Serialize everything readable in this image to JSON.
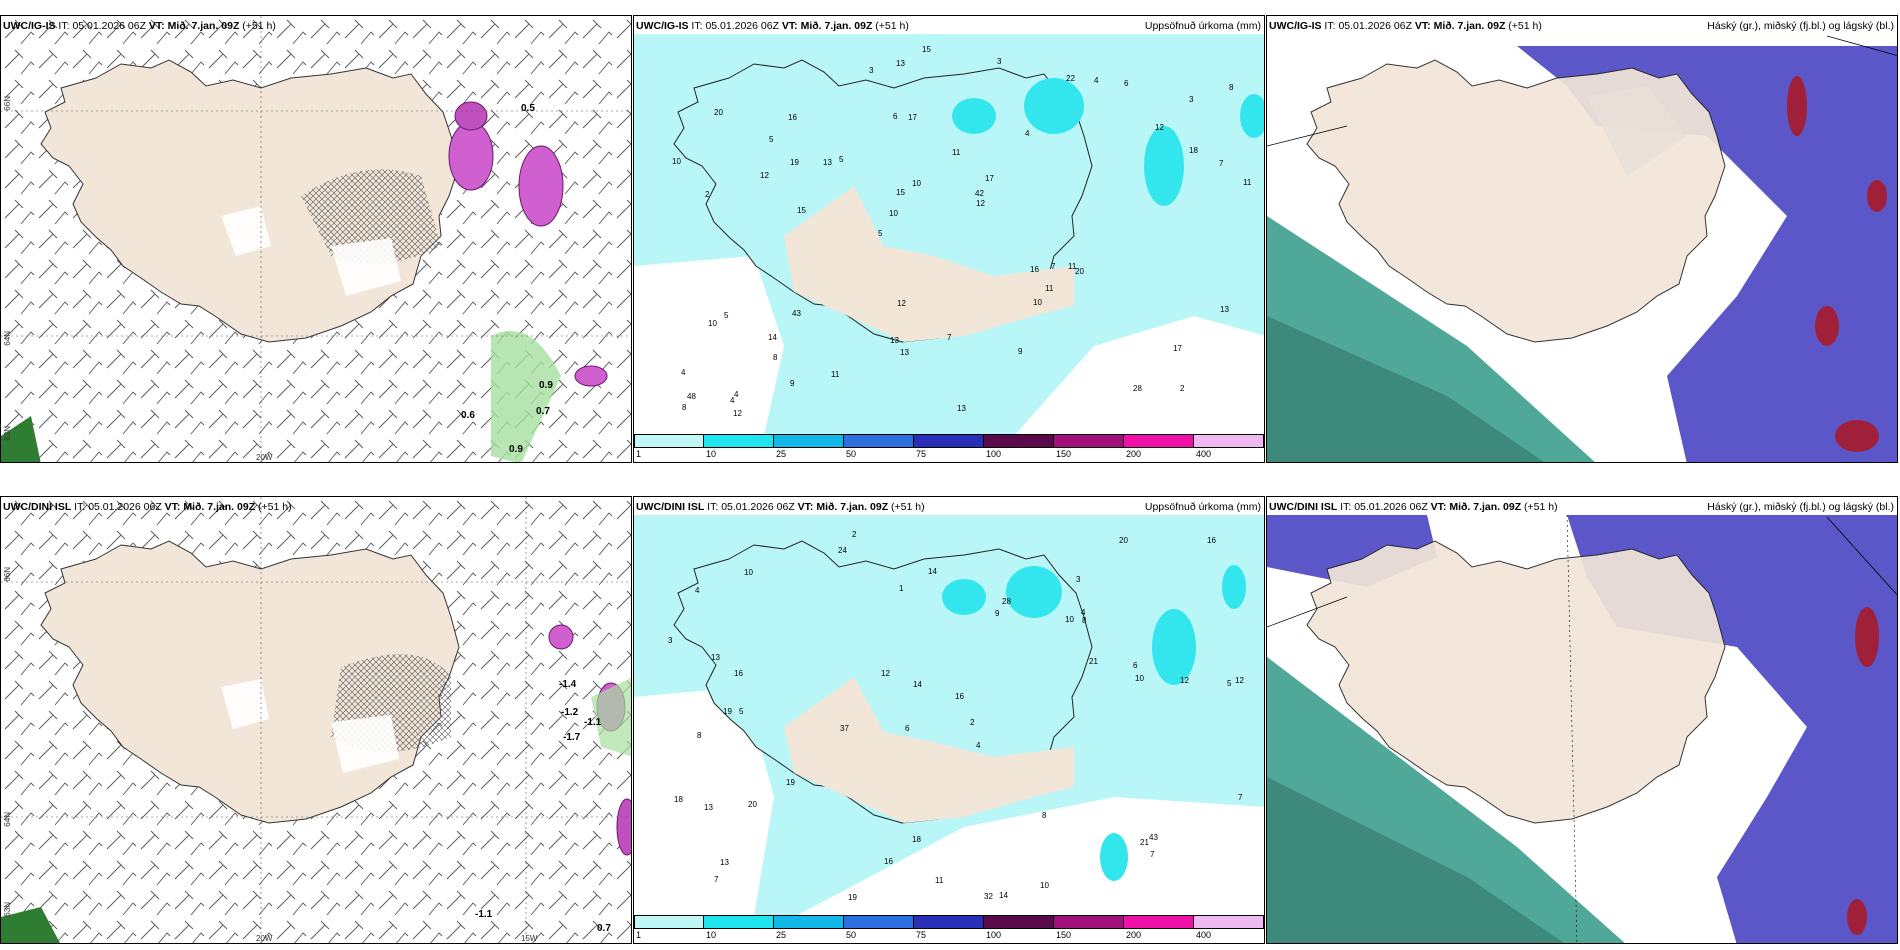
{
  "colors": {
    "land": "#f2e6d8",
    "precip_light": "#b9f6f8",
    "precip_mid": "#33e6ee",
    "cloud_high": "#5b57c8",
    "cloud_mid": "#6fa3e8",
    "cloud_low": "#4fa898",
    "cloud_red": "#a0203a",
    "wind_green": "#4caf50",
    "wind_magenta": "#c040c0"
  },
  "panels": [
    {
      "id": "wind-top",
      "model": "UWC/IG-IS",
      "it_label": "IT:",
      "it": "05.01.2026 06Z",
      "vt_label": "VT:",
      "vt": "Mið. 7.jan. 09Z",
      "lead": "(+51 h)",
      "lat_labels": [
        "66N",
        "64N",
        "63N"
      ],
      "lon_labels": [
        "20W"
      ],
      "values": [
        "0.5",
        "0.9",
        "0.7",
        "0.6",
        "0.9"
      ]
    },
    {
      "id": "precip-top",
      "model": "UWC/IG-IS",
      "it_label": "IT:",
      "it": "05.01.2026 06Z",
      "vt_label": "VT:",
      "vt": "Mið. 7.jan. 09Z",
      "lead": "(+51 h)",
      "title": "Uppsöfnuð úrkoma (mm)",
      "numbers": [
        "2",
        "2",
        "3",
        "5",
        "4",
        "4",
        "6",
        "11",
        "5",
        "5",
        "4",
        "8",
        "17",
        "17",
        "20",
        "20",
        "13",
        "11",
        "16",
        "18",
        "10",
        "13",
        "15",
        "16",
        "22",
        "43",
        "28",
        "17",
        "11",
        "13",
        "13",
        "12",
        "10",
        "9",
        "7",
        "42",
        "48",
        "13",
        "12",
        "10",
        "12",
        "8",
        "11",
        "9",
        "14",
        "12",
        "8",
        "7",
        "6",
        "15",
        "15",
        "10",
        "5",
        "4",
        "4",
        "3",
        "3",
        "10",
        "13",
        "12",
        "11",
        "7",
        "19"
      ]
    },
    {
      "id": "cloud-top",
      "model": "UWC/IG-IS",
      "it_label": "IT:",
      "it": "05.01.2026 06Z",
      "vt_label": "VT:",
      "vt": "Mið. 7.jan. 09Z",
      "lead": "(+51 h)",
      "title": "Háský (gr.), miðský (fj.bl.) og lágský (bl.)"
    },
    {
      "id": "wind-bottom",
      "model": "UWC/DINI ISL",
      "it_label": "IT:",
      "it": "05.01.2026 06Z",
      "vt_label": "VT:",
      "vt": "Mið. 7.jan. 09Z",
      "lead": "(+51 h)",
      "lat_labels": [
        "66N",
        "64N",
        "63N"
      ],
      "lon_labels": [
        "20W",
        "15W"
      ],
      "values": [
        "-1.4",
        "-1.2",
        "-1.7",
        "-1.1",
        "-1.1",
        "0.7"
      ]
    },
    {
      "id": "precip-bottom",
      "model": "UWC/DINI ISL",
      "it_label": "IT:",
      "it": "05.01.2026 06Z",
      "vt_label": "VT:",
      "vt": "Mið. 7.jan. 09Z",
      "lead": "(+51 h)",
      "title": "Uppsöfnuð úrkoma (mm)",
      "numbers": [
        "2",
        "3",
        "5",
        "6",
        "4",
        "5",
        "4",
        "10",
        "8",
        "9",
        "16",
        "7",
        "24",
        "37",
        "32",
        "14",
        "18",
        "20",
        "21",
        "19",
        "16",
        "19",
        "12",
        "12",
        "18",
        "13",
        "14",
        "10",
        "43",
        "13",
        "21",
        "28",
        "20",
        "12",
        "8",
        "7",
        "6",
        "16",
        "16",
        "14",
        "13",
        "19",
        "10",
        "10",
        "11",
        "8",
        "7",
        "4",
        "3",
        "2",
        "1"
      ]
    },
    {
      "id": "cloud-bottom",
      "model": "UWC/DINI ISL",
      "it_label": "IT:",
      "it": "05.01.2026 06Z",
      "vt_label": "VT:",
      "vt": "Mið. 7.jan. 09Z",
      "lead": "(+51 h)",
      "title": "Háský (gr.), miðský (fj.bl.) og lágský (bl.)"
    }
  ],
  "colorbar": {
    "ticks": [
      "1",
      "10",
      "25",
      "50",
      "75",
      "100",
      "150",
      "200",
      "400"
    ],
    "colors": [
      "#bff7f7",
      "#1fe6ee",
      "#12b8e8",
      "#2b6fe0",
      "#2a2fb8",
      "#5a0a4a",
      "#a0107a",
      "#ef10a8",
      "#f0b8f0"
    ]
  }
}
